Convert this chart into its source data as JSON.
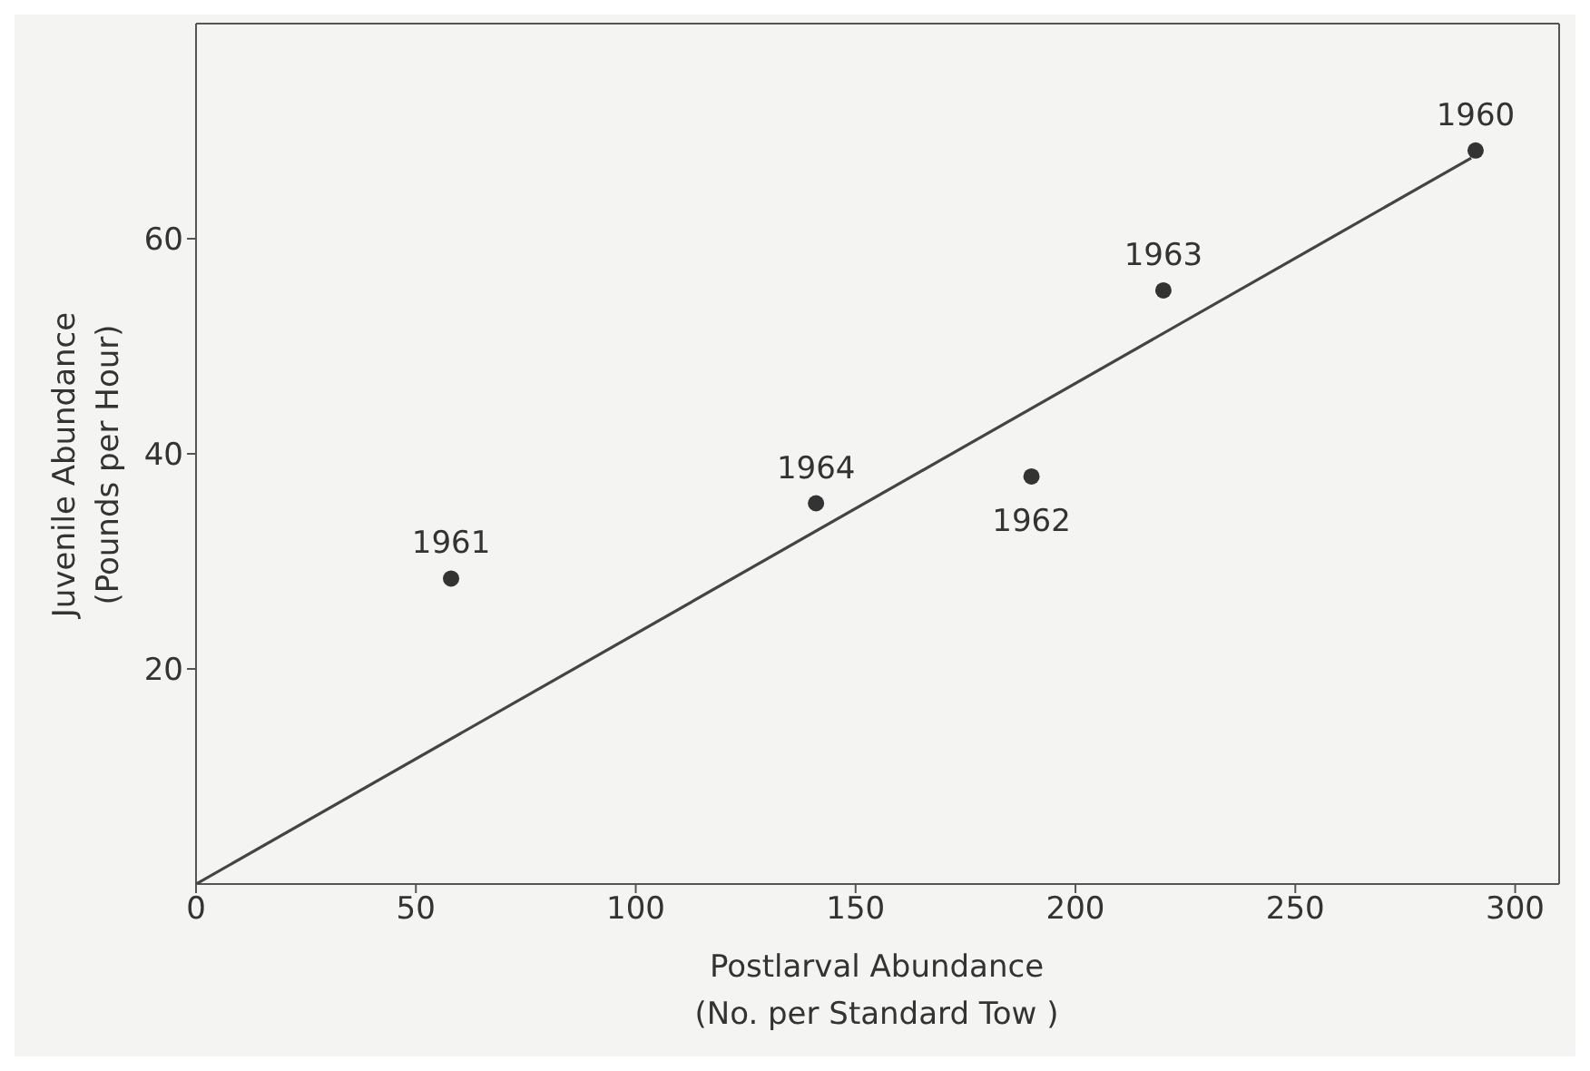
{
  "chart_data": {
    "type": "scatter",
    "xlabel": "Postlarval Abundance\n(No. per Standard Tow )",
    "ylabel": "Juvenile Abundance\n(Pounds per Hour)",
    "xlim": [
      0,
      310
    ],
    "xticks": [
      0,
      50,
      100,
      150,
      200,
      250,
      300
    ],
    "ylim": [
      0,
      80
    ],
    "yticks": [
      20,
      40,
      60
    ],
    "series": [
      {
        "color": "#333333",
        "marker": "circle",
        "x": [
          58,
          141,
          190,
          220,
          291
        ],
        "values": [
          28.4,
          35.4,
          37.9,
          55.2,
          68.2
        ]
      },
      {
        "type": "line",
        "color": "#444444",
        "x": [
          0,
          290
        ],
        "values": [
          0,
          67.5
        ],
        "marker": "none"
      }
    ],
    "annotations": [
      {
        "text": "1961",
        "x": 58,
        "y": 28.4
      },
      {
        "text": "1964",
        "x": 141,
        "y": 35.4
      },
      {
        "text": "1962",
        "x": 190,
        "y": 37.9
      },
      {
        "text": "1963",
        "x": 220,
        "y": 55.2
      },
      {
        "text": "1960",
        "x": 291,
        "y": 68.2
      }
    ]
  }
}
